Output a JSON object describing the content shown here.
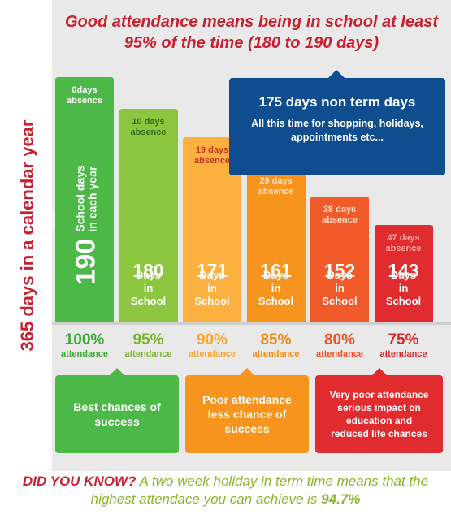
{
  "headline": "Good attendance means being in school at least 95% of the time (180 to 190 days)",
  "side_label": "365 days in a calendar year",
  "callout": {
    "title": "175 days non term days",
    "text": "All this time for shopping, holidays, appointments etc..."
  },
  "chart_data": {
    "type": "bar",
    "categories": [
      "100% attendance",
      "95% attendance",
      "90% attendance",
      "85% attendance",
      "80% attendance",
      "75% attendance"
    ],
    "values": [
      190,
      180,
      171,
      161,
      152,
      143
    ],
    "absence": [
      0,
      10,
      19,
      29,
      38,
      47
    ],
    "bars": [
      {
        "absence_label": "0days absence",
        "days": "190",
        "days_label": "School days in each year",
        "color": "#4cb848",
        "percent": "100%",
        "percent_color": "#3aa935"
      },
      {
        "absence_label": "10 days absence",
        "days": "180",
        "days_label": "Days in School",
        "color": "#8cc63f",
        "percent": "95%",
        "percent_color": "#7ab52f"
      },
      {
        "absence_label": "19 days absence",
        "days": "171",
        "days_label": "Days in School",
        "color": "#fbb040",
        "percent": "90%",
        "percent_color": "#f7a630"
      },
      {
        "absence_label": "29 days absence",
        "days": "161",
        "days_label": "Days in School",
        "color": "#f7941d",
        "percent": "85%",
        "percent_color": "#f48a14"
      },
      {
        "absence_label": "38 days absence",
        "days": "152",
        "days_label": "Days in School",
        "color": "#f15a29",
        "percent": "80%",
        "percent_color": "#ee5224"
      },
      {
        "absence_label": "47 days absence",
        "days": "143",
        "days_label": "Days in School",
        "color": "#e02b2f",
        "percent": "75%",
        "percent_color": "#d8262b"
      }
    ],
    "percent_suffix": "attendance"
  },
  "boxes": [
    {
      "text": "Best chances of success",
      "color": "#4cb848"
    },
    {
      "text": "Poor attendance less chance of success",
      "color": "#f7941d"
    },
    {
      "text": "Very poor attendance serious impact on education and reduced life chances",
      "color": "#e02b2f"
    }
  ],
  "footer": {
    "did_you_know": "DID YOU KNOW?",
    "text": "A two week holiday in term time means that the highest attendace you can achieve is",
    "highlight": "94.7%"
  }
}
